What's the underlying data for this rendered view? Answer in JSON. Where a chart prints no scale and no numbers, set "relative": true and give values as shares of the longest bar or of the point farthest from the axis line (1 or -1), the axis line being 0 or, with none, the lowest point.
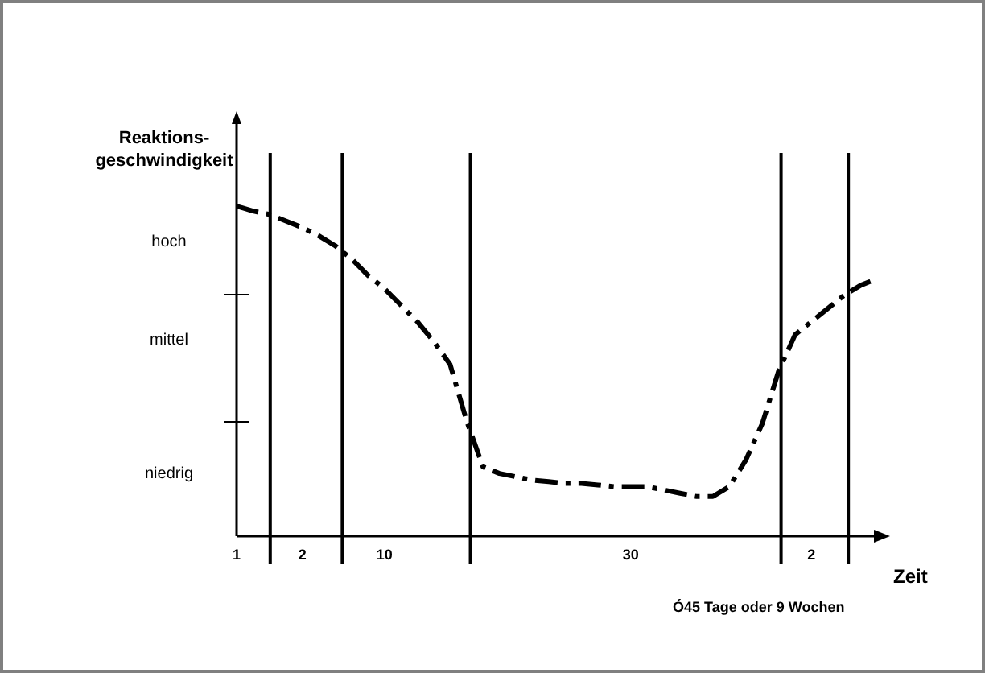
{
  "chart_data": {
    "type": "line",
    "relative": true,
    "ylabel": "Reaktions-geschwindigkeit",
    "xlabel": "Zeit",
    "marker": "none",
    "line_style": "dashed",
    "annotations": [
      "hoch",
      "mittel",
      "niedrig",
      "Ó45 Tage oder 9 Wochen"
    ],
    "categories": [
      "1",
      null,
      null,
      null,
      "2",
      null,
      null,
      null,
      null,
      "10",
      null,
      null,
      null,
      null,
      null,
      null,
      null,
      null,
      null,
      null,
      null,
      null,
      null,
      null,
      "30",
      null,
      null,
      null,
      null,
      null,
      null,
      null,
      null,
      null,
      null,
      "2",
      null,
      null,
      null,
      null
    ],
    "series": [
      {
        "color": "#000000",
        "values": [
          1,
          0.985,
          0.975,
          0.955,
          0.935,
          0.91,
          0.88,
          0.84,
          0.79,
          0.75,
          0.7,
          0.65,
          0.59,
          0.52,
          0.35,
          0.21,
          0.19,
          0.18,
          0.17,
          0.165,
          0.16,
          0.16,
          0.155,
          0.15,
          0.15,
          0.15,
          0.14,
          0.13,
          0.12,
          0.12,
          0.15,
          0.23,
          0.34,
          0.5,
          0.61,
          0.65,
          0.69,
          0.73,
          0.76,
          0.78
        ]
      }
    ]
  }
}
